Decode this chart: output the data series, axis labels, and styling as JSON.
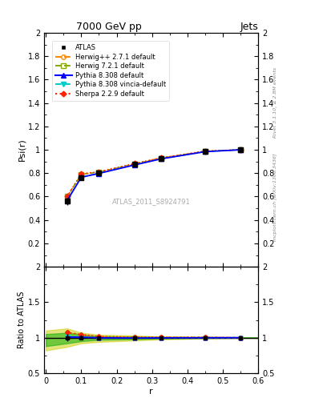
{
  "title": "7000 GeV pp",
  "title_right": "Jets",
  "xlabel": "r",
  "ylabel_main": "Psi(r)",
  "ylabel_ratio": "Ratio to ATLAS",
  "annotation": "ATLAS_2011_S8924791",
  "right_label_top": "Rivet 3.1.10, ≥ 2.8M events",
  "right_label_bottom": "mcplots.cern.ch [arXiv:1306.3436]",
  "x": [
    0.06,
    0.1,
    0.15,
    0.25,
    0.325,
    0.45,
    0.55
  ],
  "atlas_y": [
    0.56,
    0.76,
    0.8,
    0.875,
    0.925,
    0.985,
    1.0
  ],
  "atlas_yerr": [
    0.03,
    0.02,
    0.02,
    0.015,
    0.01,
    0.008,
    0.005
  ],
  "herwig1_y": [
    0.6,
    0.79,
    0.81,
    0.88,
    0.93,
    0.988,
    1.0
  ],
  "herwig2_y": [
    0.6,
    0.79,
    0.81,
    0.878,
    0.928,
    0.987,
    1.0
  ],
  "pythia1_y": [
    0.565,
    0.765,
    0.798,
    0.87,
    0.922,
    0.984,
    1.0
  ],
  "pythia2_y": [
    0.57,
    0.768,
    0.8,
    0.872,
    0.923,
    0.984,
    1.0
  ],
  "sherpa_y": [
    0.6,
    0.795,
    0.812,
    0.882,
    0.93,
    0.989,
    1.0
  ],
  "atlas_color": "#000000",
  "herwig1_color": "#ff8800",
  "herwig2_color": "#88aa00",
  "pythia1_color": "#0000ff",
  "pythia2_color": "#00cccc",
  "sherpa_color": "#ff2200",
  "band_color_yellow": "#cccc00",
  "band_color_green": "#00aa00",
  "xlim": [
    -0.005,
    0.6
  ],
  "ylim_main": [
    0.0,
    2.0
  ],
  "ylim_ratio": [
    0.5,
    2.0
  ],
  "yticks_main": [
    0.2,
    0.4,
    0.6,
    0.8,
    1.0,
    1.2,
    1.4,
    1.6,
    1.8,
    2.0
  ],
  "ytick_labels_main": [
    "0.2",
    "0.4",
    "0.6",
    "0.8",
    "1",
    "1.2",
    "1.4",
    "1.6",
    "1.8",
    "2"
  ],
  "yticks_ratio": [
    0.5,
    1.0,
    1.5,
    2.0
  ],
  "ytick_labels_ratio": [
    "0.5",
    "1",
    "1.5",
    "2"
  ],
  "xticks": [
    0.0,
    0.1,
    0.2,
    0.3,
    0.4,
    0.5,
    0.6
  ],
  "xtick_labels": [
    "0",
    "0.1",
    "0.2",
    "0.3",
    "0.4",
    "0.5",
    "0.6"
  ]
}
